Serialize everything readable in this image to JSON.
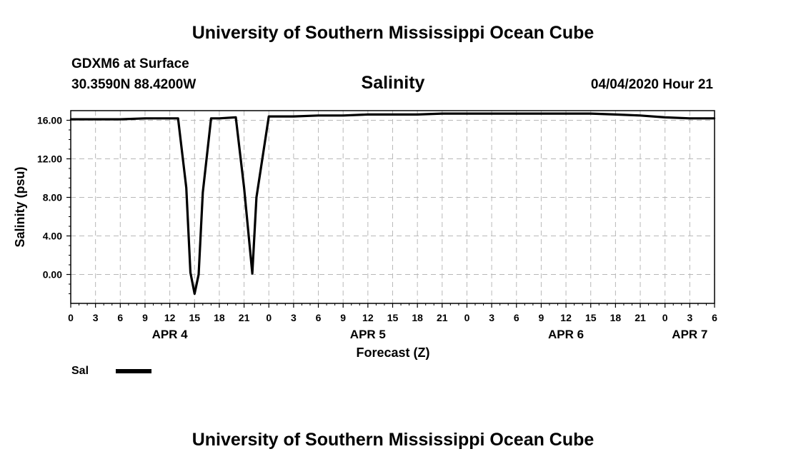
{
  "header": {
    "top_title": "University of Southern Mississippi Ocean Cube",
    "station": "GDXM6 at Surface",
    "coords": "30.3590N 88.4200W",
    "plot_title": "Salinity",
    "datetime": "04/04/2020 Hour 21"
  },
  "footer": {
    "bottom_title": "University of Southern Mississippi Ocean Cube"
  },
  "legend": {
    "label": "Sal"
  },
  "chart_data": {
    "type": "line",
    "ylabel": "Salinity (psu)",
    "xlabel": "Forecast (Z)",
    "ylim": [
      -3,
      17
    ],
    "y_ticks": [
      "16.00",
      "12.00",
      "8.00",
      "4.00",
      "0.00"
    ],
    "y_tick_values": [
      16,
      12,
      8,
      4,
      0
    ],
    "x_ticks": [
      "0",
      "3",
      "6",
      "9",
      "12",
      "15",
      "18",
      "21",
      "0",
      "3",
      "6",
      "9",
      "12",
      "15",
      "18",
      "21",
      "0",
      "3",
      "6",
      "9",
      "12",
      "15",
      "18",
      "21",
      "0",
      "3",
      "6"
    ],
    "x_tick_hours": [
      0,
      3,
      6,
      9,
      12,
      15,
      18,
      21,
      24,
      27,
      30,
      33,
      36,
      39,
      42,
      45,
      48,
      51,
      54,
      57,
      60,
      63,
      66,
      69,
      72,
      75,
      78
    ],
    "day_labels": [
      "APR 4",
      "APR 5",
      "APR 6",
      "APR 7"
    ],
    "day_label_hours": [
      12,
      36,
      60,
      75
    ],
    "x_range_hours": [
      0,
      78
    ],
    "grid": true,
    "series": [
      {
        "name": "Sal",
        "color": "#000000",
        "x_hours": [
          0,
          3,
          6,
          9,
          12,
          13,
          14,
          14.5,
          15,
          15.5,
          16,
          17,
          18,
          20,
          21,
          22,
          22.5,
          24,
          27,
          30,
          33,
          36,
          39,
          42,
          45,
          48,
          51,
          54,
          57,
          60,
          63,
          66,
          69,
          72,
          75,
          78
        ],
        "values": [
          16.1,
          16.1,
          16.1,
          16.2,
          16.2,
          16.2,
          9.0,
          0.2,
          -2.0,
          0.0,
          8.5,
          16.2,
          16.2,
          16.3,
          9.0,
          0.1,
          8.0,
          16.4,
          16.4,
          16.5,
          16.5,
          16.6,
          16.6,
          16.6,
          16.7,
          16.7,
          16.7,
          16.7,
          16.7,
          16.7,
          16.7,
          16.6,
          16.5,
          16.3,
          16.2,
          16.2
        ]
      }
    ]
  }
}
